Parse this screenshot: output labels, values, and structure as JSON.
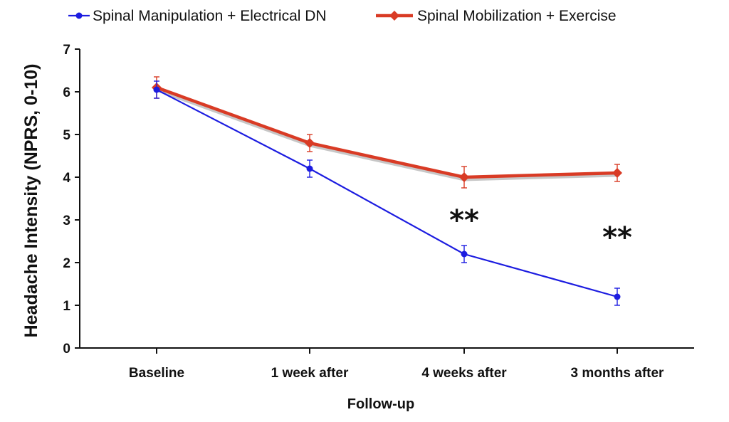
{
  "chart_data": {
    "type": "line",
    "categories": [
      "Baseline",
      "1 week after",
      "4 weeks after",
      "3 months after"
    ],
    "series": [
      {
        "name": "Spinal Manipulation + Electrical DN",
        "color": "#1c1ce0",
        "marker": "circle",
        "values": [
          6.05,
          4.2,
          2.2,
          1.2
        ],
        "error": [
          0.2,
          0.2,
          0.2,
          0.2
        ]
      },
      {
        "name": "Spinal Mobilization + Exercise",
        "color": "#d93b25",
        "marker": "diamond",
        "values": [
          6.1,
          4.8,
          4.0,
          4.1
        ],
        "error": [
          0.25,
          0.2,
          0.25,
          0.2
        ]
      }
    ],
    "xlabel": "Follow-up",
    "ylabel": "Headache Intensity (NPRS, 0-10)",
    "ylim": [
      0,
      7
    ],
    "yticks": [
      "0",
      "1",
      "2",
      "3",
      "4",
      "5",
      "6",
      "7"
    ],
    "grid": false,
    "legend_position": "top",
    "annotations": [
      {
        "text": "**",
        "category": "4 weeks after",
        "y": 3.0
      },
      {
        "text": "**",
        "category": "3 months after",
        "y": 2.6
      }
    ]
  }
}
